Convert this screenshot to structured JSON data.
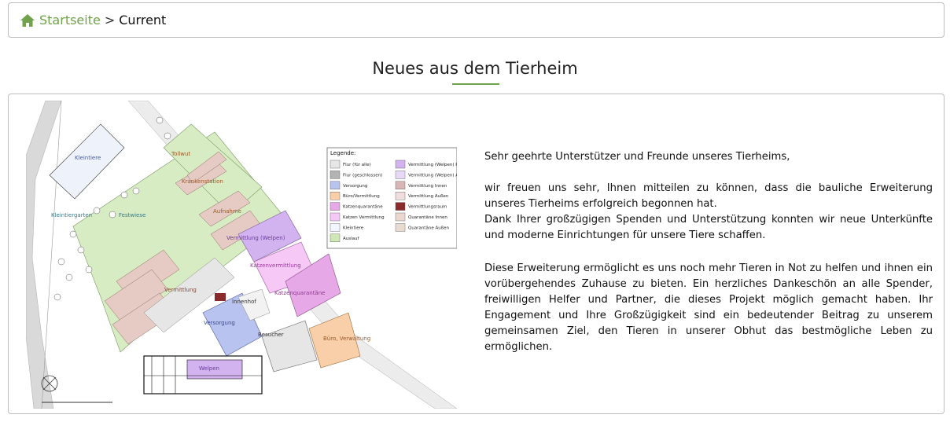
{
  "breadcrumb": {
    "home_label": "Startseite",
    "separator": ">",
    "current": "Current",
    "accent_color": "#6fa24a"
  },
  "page": {
    "title": "Neues aus dem Tierheim"
  },
  "plan": {
    "legend_title": "Legende:",
    "legend_left": [
      {
        "label": "Flur (für alle)",
        "color": "#e6e6e6"
      },
      {
        "label": "Flur (geschlossen)",
        "color": "#b3b3b3"
      },
      {
        "label": "Versorgung",
        "color": "#b9c3f0"
      },
      {
        "label": "Büro/Vermittlung",
        "color": "#f8cfa8"
      },
      {
        "label": "Katzenquarantäne",
        "color": "#e7a8e7"
      },
      {
        "label": "Katzen Vermittlung",
        "color": "#f5c8f5"
      },
      {
        "label": "Kleintiere",
        "color": "#f0f5ff"
      },
      {
        "label": "Auslauf",
        "color": "#cfe8b5"
      }
    ],
    "legend_right": [
      {
        "label": "Vermittlung (Welpen) Innen",
        "color": "#d2b3f0"
      },
      {
        "label": "Vermittlung (Welpen) Außen",
        "color": "#e8d8f8"
      },
      {
        "label": "Vermittlung Innen",
        "color": "#d9b5b5"
      },
      {
        "label": "Vermittlung Außen",
        "color": "#f0dede"
      },
      {
        "label": "Vermittlungsraum",
        "color": "#8a2a2a"
      },
      {
        "label": "Quarantäne Innen",
        "color": "#ead8d0"
      },
      {
        "label": "Quarantäne Außen",
        "color": "#e8dcd0"
      }
    ],
    "labels": {
      "kleintiere": "Kleintiere",
      "kleintiergarten": "Kleintiergarten",
      "festwiese": "Festwiese",
      "tollwut": "Tollwut",
      "krankenstation": "Krankenstation",
      "aufnahme": "Aufnahme",
      "vermittlung_welpen": "Vermittlung (Welpen)",
      "katzenvermittlung": "Katzenvermittlung",
      "katzenquarantaene": "Katzenquarantäne",
      "vermittlung": "Vermittlung",
      "innenhof": "Innenhof",
      "versorgung": "Versorgung",
      "besucher": "Besucher",
      "buero": "Büro, Verwaltung",
      "welpen": "Welpen"
    }
  },
  "article": {
    "greeting": "Sehr geehrte Unterstützer und Freunde unseres Tierheims,",
    "paragraph1": "wir freuen uns sehr, Ihnen mitteilen zu können, dass die bauliche Erweiterung unseres Tierheims erfolgreich begonnen hat.",
    "paragraph2": "Dank Ihrer großzügigen Spenden und Unterstützung konnten wir neue Unterkünfte und moderne Einrichtungen für unsere Tiere schaffen.",
    "paragraph3": "Diese Erweiterung ermöglicht es uns noch mehr Tieren in Not zu helfen und ihnen ein vorübergehendes Zuhause zu bieten. Ein herzliches Dankeschön an alle Spender, freiwilligen Helfer und Partner, die dieses Projekt möglich gemacht haben. Ihr Engagement und Ihre Großzügigkeit sind ein bedeutender Beitrag zu unserem gemeinsamen Ziel, den Tieren in unserer Obhut das bestmögliche Leben zu ermöglichen."
  }
}
